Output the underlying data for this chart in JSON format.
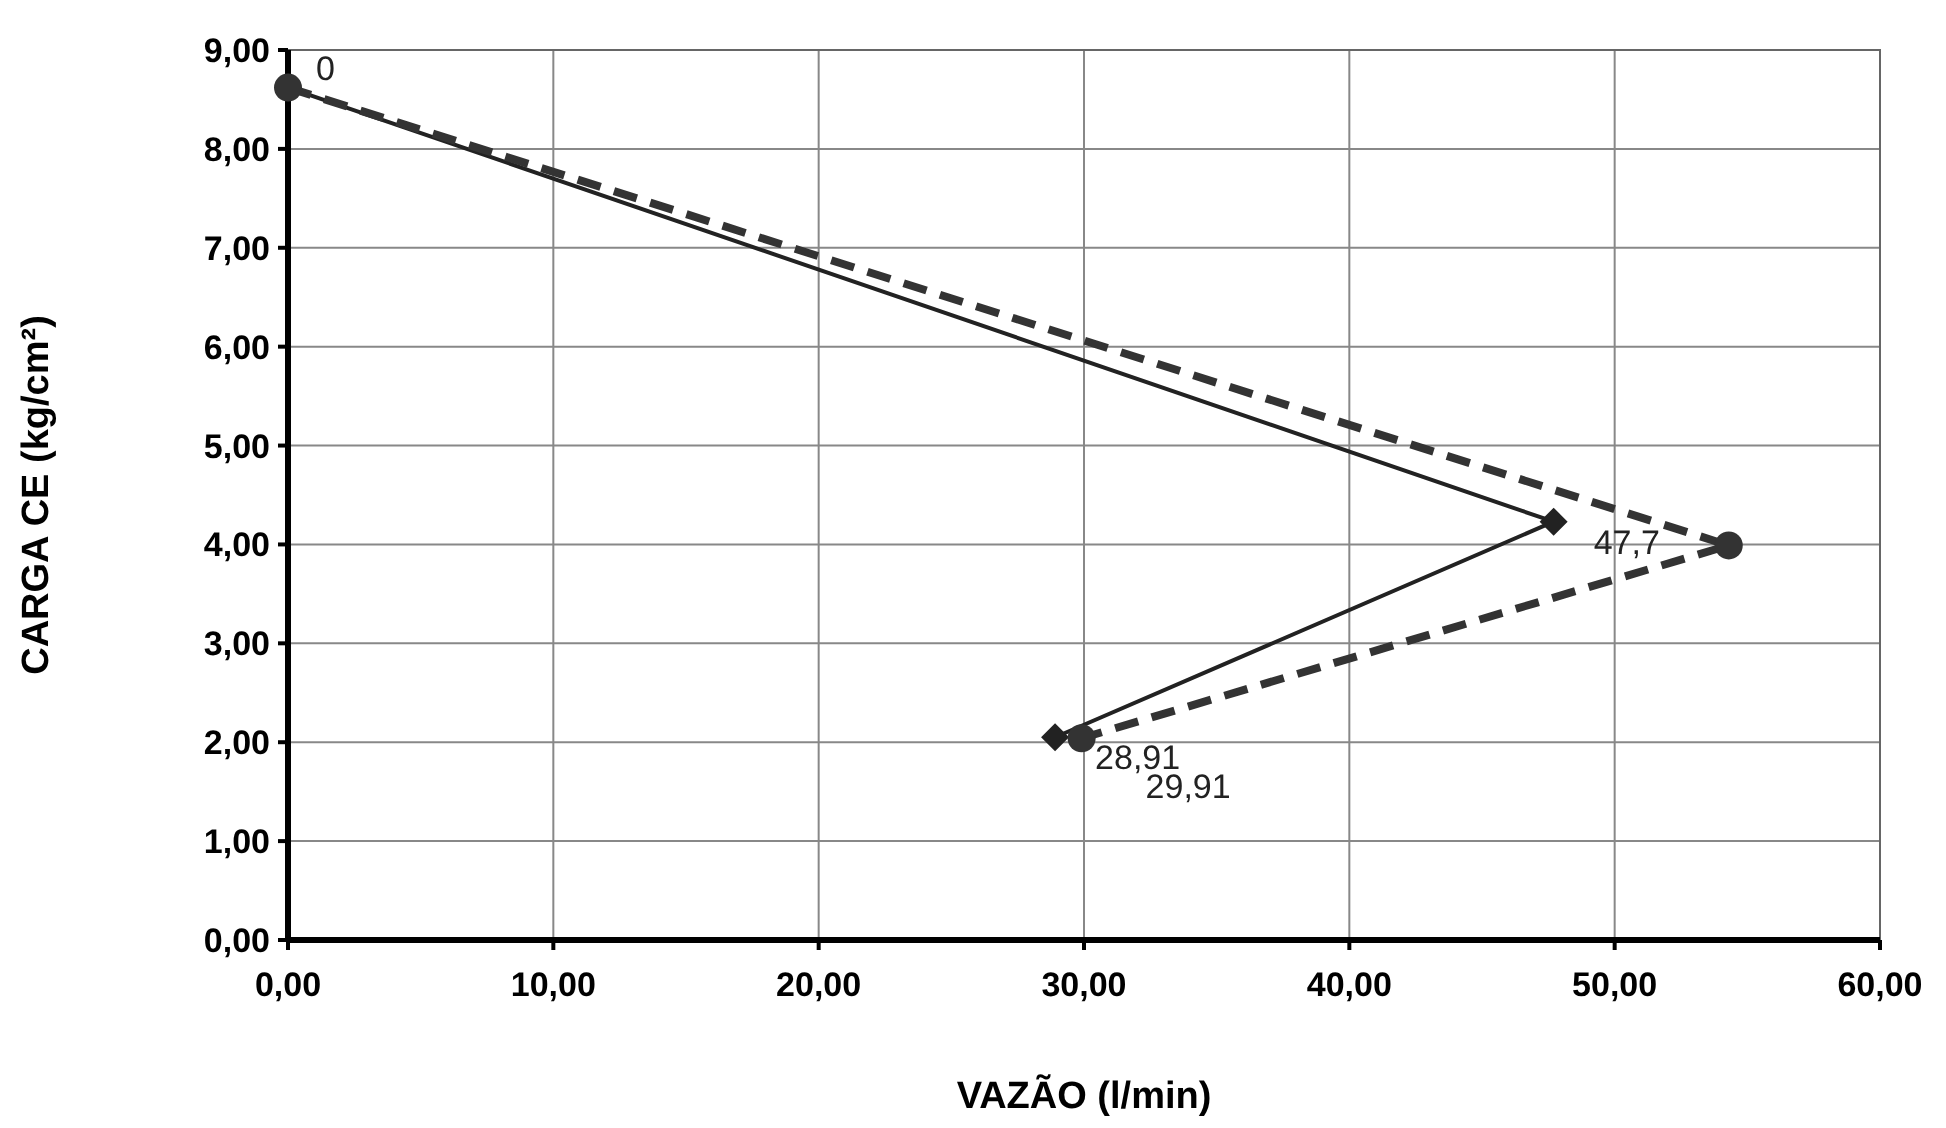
{
  "chart_data": {
    "type": "line",
    "xlabel": "VAZÃO (l/min)",
    "ylabel": "CARGA CE (kg/cm²)",
    "xlim": [
      0,
      60
    ],
    "ylim": [
      0,
      9
    ],
    "xticks": [
      {
        "value": 0,
        "label": "0,00"
      },
      {
        "value": 10,
        "label": "10,00"
      },
      {
        "value": 20,
        "label": "20,00"
      },
      {
        "value": 30,
        "label": "30,00"
      },
      {
        "value": 40,
        "label": "40,00"
      },
      {
        "value": 50,
        "label": "50,00"
      },
      {
        "value": 60,
        "label": "60,00"
      }
    ],
    "yticks": [
      {
        "value": 0,
        "label": "0,00"
      },
      {
        "value": 1,
        "label": "1,00"
      },
      {
        "value": 2,
        "label": "2,00"
      },
      {
        "value": 3,
        "label": "3,00"
      },
      {
        "value": 4,
        "label": "4,00"
      },
      {
        "value": 5,
        "label": "5,00"
      },
      {
        "value": 6,
        "label": "6,00"
      },
      {
        "value": 7,
        "label": "7,00"
      },
      {
        "value": 8,
        "label": "8,00"
      },
      {
        "value": 9,
        "label": "9,00"
      }
    ],
    "grid": true,
    "annotations": [
      {
        "text": "0",
        "x": 0,
        "y": 8.62
      },
      {
        "text": "47,7",
        "x": 47.7,
        "y": 4.23
      },
      {
        "text": "28,91",
        "x": 28.91,
        "y": 2.05
      },
      {
        "text": "29,91",
        "x": 29.91,
        "y": 2.04
      }
    ],
    "series": [
      {
        "color": "#222222",
        "marker": "diamond",
        "line_style": "solid",
        "x": [
          0,
          47.7,
          28.91
        ],
        "values": [
          8.62,
          4.23,
          2.05
        ]
      },
      {
        "color": "#333333",
        "marker": "circle",
        "line_style": "dashed",
        "x": [
          0,
          54.3,
          29.91
        ],
        "values": [
          8.62,
          3.99,
          2.04
        ]
      }
    ]
  }
}
